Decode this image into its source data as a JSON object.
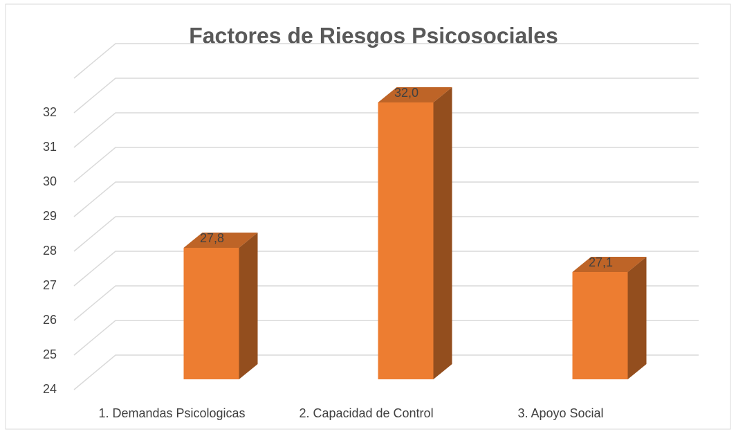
{
  "chart_data": {
    "type": "bar",
    "title": "Factores de Riesgos Psicosociales",
    "categories": [
      "1. Demandas Psicologicas",
      "2. Capacidad de Control",
      "3. Apoyo Social"
    ],
    "values": [
      27.8,
      32.0,
      27.1
    ],
    "value_labels": [
      "27,8",
      "32,0",
      "27,1"
    ],
    "color": "#ed7d31",
    "ylim": [
      24,
      33
    ],
    "yticks": [
      24,
      25,
      26,
      27,
      28,
      29,
      30,
      31,
      32
    ],
    "grid": true
  }
}
